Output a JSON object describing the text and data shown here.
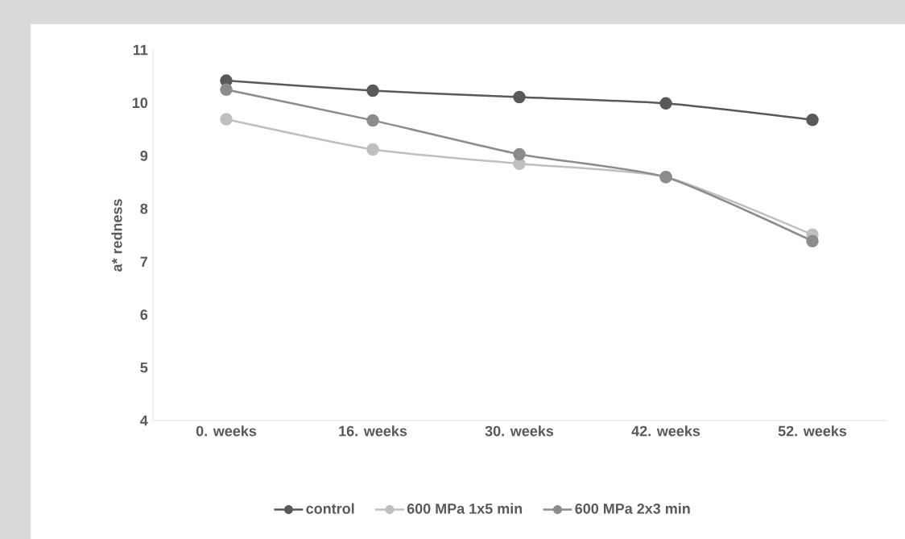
{
  "chart_data": {
    "type": "line",
    "ylabel": "a* redness",
    "categories": [
      "0. weeks",
      "16. weeks",
      "30. weeks",
      "42. weeks",
      "52. weeks"
    ],
    "series": [
      {
        "name": "control",
        "color": "#595959",
        "values": [
          10.42,
          10.23,
          10.11,
          9.99,
          9.68
        ]
      },
      {
        "name": "600 MPa 1x5 min",
        "color": "#bfbfbf",
        "values": [
          9.69,
          9.12,
          8.85,
          8.6,
          7.51
        ]
      },
      {
        "name": "600 MPa 2x3 min",
        "color": "#8c8c8c",
        "values": [
          10.25,
          9.67,
          9.03,
          8.6,
          7.39
        ]
      }
    ],
    "ylim": [
      4,
      11
    ],
    "yticks": [
      4,
      5,
      6,
      7,
      8,
      9,
      10,
      11
    ],
    "grid": false,
    "legend": "bottom",
    "marker": "circle",
    "line_style": "solid"
  }
}
